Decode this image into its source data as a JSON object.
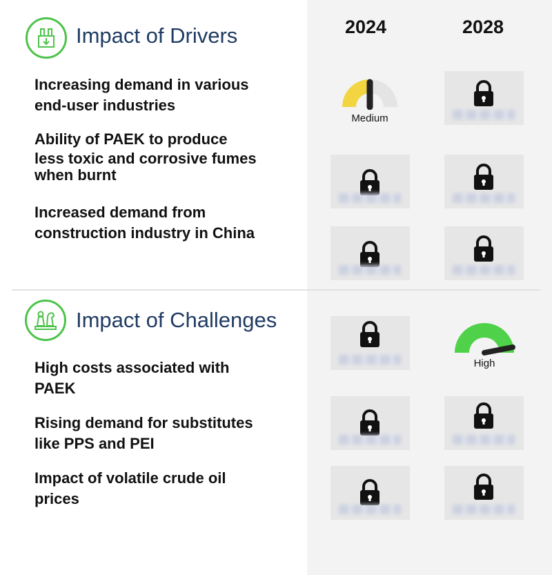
{
  "years": [
    "2024",
    "2028"
  ],
  "drivers": {
    "title": "Impact of Drivers",
    "icon": "factory-icon",
    "items": [
      {
        "lines": [
          "Increasing demand in various",
          "end-user industries"
        ],
        "y2024": "Medium",
        "y2028": "locked"
      },
      {
        "lines": [
          "Ability of PAEK to produce",
          "less toxic and corrosive fumes",
          "when burnt"
        ],
        "y2024": "locked",
        "y2028": "locked"
      },
      {
        "lines": [
          "Increased demand from",
          "construction industry in China"
        ],
        "y2024": "locked",
        "y2028": "locked"
      }
    ]
  },
  "challenges": {
    "title": "Impact of Challenges",
    "icon": "chess-icon",
    "items": [
      {
        "lines": [
          "High costs associated with",
          "PAEK"
        ],
        "y2024": "locked",
        "y2028": "High"
      },
      {
        "lines": [
          "Rising demand for substitutes",
          "like PPS and PEI"
        ],
        "y2024": "locked",
        "y2028": "locked"
      },
      {
        "lines": [
          "Impact of volatile crude oil",
          "prices"
        ],
        "y2024": "locked",
        "y2028": "locked"
      }
    ]
  },
  "gauges": {
    "medium": {
      "label": "Medium",
      "level": 0.5,
      "color": "#f2d541"
    },
    "high": {
      "label": "High",
      "level": 1.0,
      "color": "#4fd14a"
    }
  },
  "colors": {
    "accent": "#4cc34a",
    "title": "#1f3b63",
    "panel": "#f3f3f3"
  }
}
